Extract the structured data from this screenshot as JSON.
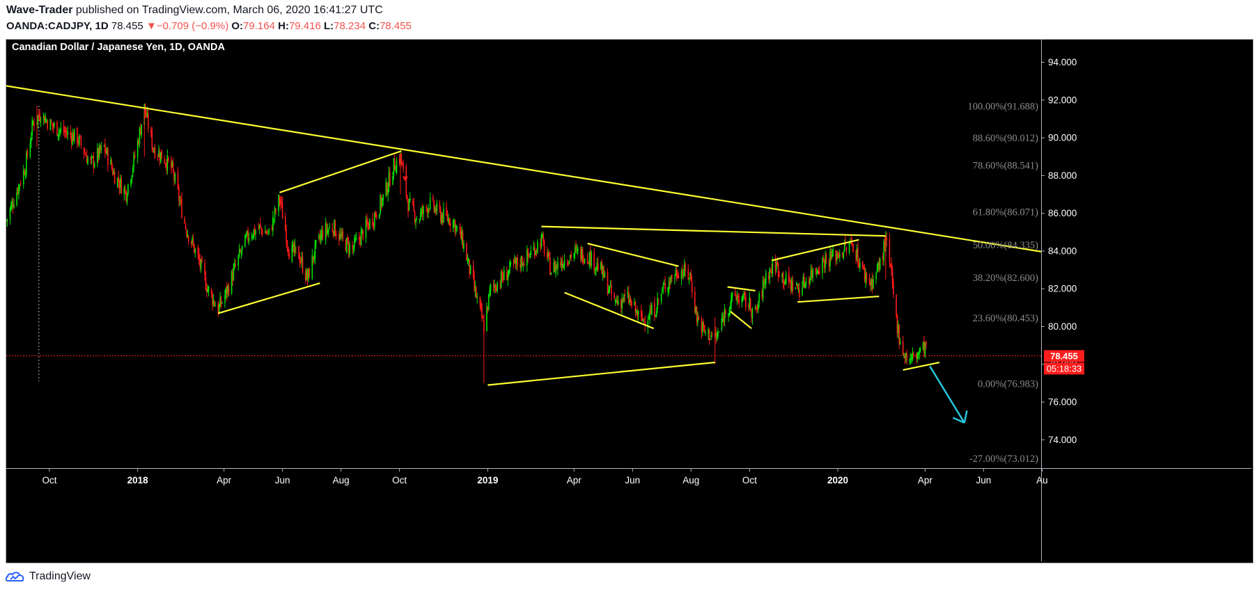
{
  "header": {
    "author": "Wave-Trader",
    "published_text": " published on TradingView.com, March 06, 2020 16:41:27 UTC",
    "symbol": "OANDA:CADJPY, 1D",
    "last": "78.455",
    "change_arrow": "▼",
    "change": "−0.709 (−0.9%)",
    "o_label": "O:",
    "o_value": "79.164",
    "h_label": "H:",
    "h_value": "79.416",
    "l_label": "L:",
    "l_value": "78.234",
    "c_label": "C:",
    "c_value": "78.455"
  },
  "footer": {
    "brand": "TradingView"
  },
  "chart_data": {
    "type": "candlestick",
    "title": "Canadian Dollar / Japanese Yen, 1D, OANDA",
    "ylim": [
      72.5,
      95.2
    ],
    "y_ticks": [
      74,
      76,
      78,
      80,
      82,
      84,
      86,
      88,
      90,
      92,
      94
    ],
    "y_tick_labels": [
      "74.000",
      "76.000",
      "78.000",
      "80.000",
      "82.000",
      "84.000",
      "86.000",
      "88.000",
      "90.000",
      "92.000",
      "94.000"
    ],
    "xlim": [
      "2017-08-17",
      "2020-07-31"
    ],
    "x_ticks": [
      {
        "date": "2017-10-01",
        "label": "Oct",
        "bold": false
      },
      {
        "date": "2018-01-01",
        "label": "2018",
        "bold": true
      },
      {
        "date": "2018-04-01",
        "label": "Apr",
        "bold": false
      },
      {
        "date": "2018-06-01",
        "label": "Jun",
        "bold": false
      },
      {
        "date": "2018-08-01",
        "label": "Aug",
        "bold": false
      },
      {
        "date": "2018-10-01",
        "label": "Oct",
        "bold": false
      },
      {
        "date": "2019-01-01",
        "label": "2019",
        "bold": true
      },
      {
        "date": "2019-04-01",
        "label": "Apr",
        "bold": false
      },
      {
        "date": "2019-06-01",
        "label": "Jun",
        "bold": false
      },
      {
        "date": "2019-08-01",
        "label": "Aug",
        "bold": false
      },
      {
        "date": "2019-10-01",
        "label": "Oct",
        "bold": false
      },
      {
        "date": "2020-01-01",
        "label": "2020",
        "bold": true
      },
      {
        "date": "2020-04-01",
        "label": "Apr",
        "bold": false
      },
      {
        "date": "2020-06-01",
        "label": "Jun",
        "bold": false
      },
      {
        "date": "2020-08-01",
        "label": "Au",
        "bold": false
      }
    ],
    "price_path": [
      [
        "2017-08-17",
        85.6
      ],
      [
        "2017-08-28",
        87.2
      ],
      [
        "2017-09-06",
        88.5
      ],
      [
        "2017-09-14",
        90.8
      ],
      [
        "2017-09-22",
        91.3
      ],
      [
        "2017-10-02",
        90.7
      ],
      [
        "2017-10-16",
        90.3
      ],
      [
        "2017-10-30",
        90.0
      ],
      [
        "2017-11-13",
        88.6
      ],
      [
        "2017-11-27",
        89.5
      ],
      [
        "2017-12-08",
        88.0
      ],
      [
        "2017-12-20",
        87.1
      ],
      [
        "2017-12-30",
        89.2
      ],
      [
        "2018-01-08",
        91.6
      ],
      [
        "2018-01-17",
        89.5
      ],
      [
        "2018-01-29",
        88.9
      ],
      [
        "2018-02-06",
        88.3
      ],
      [
        "2018-02-20",
        85.3
      ],
      [
        "2018-03-05",
        83.6
      ],
      [
        "2018-03-15",
        82.0
      ],
      [
        "2018-03-26",
        80.9
      ],
      [
        "2018-04-05",
        82.0
      ],
      [
        "2018-04-16",
        83.6
      ],
      [
        "2018-04-27",
        84.9
      ],
      [
        "2018-05-08",
        85.2
      ],
      [
        "2018-05-18",
        84.9
      ],
      [
        "2018-05-29",
        86.8
      ],
      [
        "2018-06-08",
        84.0
      ],
      [
        "2018-06-18",
        83.8
      ],
      [
        "2018-06-27",
        82.5
      ],
      [
        "2018-07-04",
        83.9
      ],
      [
        "2018-07-13",
        85.0
      ],
      [
        "2018-07-24",
        85.3
      ],
      [
        "2018-08-03",
        84.5
      ],
      [
        "2018-08-13",
        84.1
      ],
      [
        "2018-08-24",
        85.0
      ],
      [
        "2018-09-04",
        85.8
      ],
      [
        "2018-09-14",
        86.8
      ],
      [
        "2018-09-25",
        88.5
      ],
      [
        "2018-10-02",
        89.0
      ],
      [
        "2018-10-10",
        86.5
      ],
      [
        "2018-10-20",
        85.7
      ],
      [
        "2018-11-01",
        86.5
      ],
      [
        "2018-11-13",
        85.9
      ],
      [
        "2018-11-26",
        85.6
      ],
      [
        "2018-12-06",
        84.5
      ],
      [
        "2018-12-18",
        82.0
      ],
      [
        "2018-12-28",
        80.0
      ],
      [
        "2019-01-04",
        82.0
      ],
      [
        "2019-01-15",
        82.5
      ],
      [
        "2019-01-28",
        83.2
      ],
      [
        "2019-02-12",
        83.7
      ],
      [
        "2019-02-26",
        84.6
      ],
      [
        "2019-03-08",
        83.0
      ],
      [
        "2019-03-20",
        83.5
      ],
      [
        "2019-04-01",
        83.9
      ],
      [
        "2019-04-15",
        83.8
      ],
      [
        "2019-04-29",
        83.0
      ],
      [
        "2019-05-13",
        81.3
      ],
      [
        "2019-05-27",
        81.5
      ],
      [
        "2019-06-10",
        80.3
      ],
      [
        "2019-06-24",
        80.9
      ],
      [
        "2019-07-05",
        82.2
      ],
      [
        "2019-07-19",
        83.0
      ],
      [
        "2019-07-31",
        82.7
      ],
      [
        "2019-08-07",
        80.5
      ],
      [
        "2019-08-15",
        79.7
      ],
      [
        "2019-08-28",
        79.4
      ],
      [
        "2019-09-06",
        80.9
      ],
      [
        "2019-09-16",
        81.6
      ],
      [
        "2019-09-30",
        81.2
      ],
      [
        "2019-10-07",
        80.6
      ],
      [
        "2019-10-18",
        82.7
      ],
      [
        "2019-10-28",
        83.3
      ],
      [
        "2019-11-08",
        82.4
      ],
      [
        "2019-11-22",
        82.0
      ],
      [
        "2019-12-04",
        82.8
      ],
      [
        "2019-12-18",
        83.5
      ],
      [
        "2019-12-30",
        83.8
      ],
      [
        "2020-01-08",
        84.1
      ],
      [
        "2020-01-17",
        84.4
      ],
      [
        "2020-01-27",
        82.9
      ],
      [
        "2020-02-05",
        82.3
      ],
      [
        "2020-02-13",
        83.2
      ],
      [
        "2020-02-20",
        84.5
      ],
      [
        "2020-02-25",
        83.0
      ],
      [
        "2020-03-02",
        80.3
      ],
      [
        "2020-03-09",
        78.6
      ],
      [
        "2020-03-16",
        78.2
      ],
      [
        "2020-03-25",
        78.6
      ],
      [
        "2020-04-03",
        79.0
      ]
    ],
    "wicks": [
      {
        "date": "2017-09-18",
        "high": 91.7,
        "low": 89.5
      },
      {
        "date": "2018-01-08",
        "high": 91.6,
        "low": 89.0
      },
      {
        "date": "2018-10-02",
        "high": 89.2,
        "low": 87.0
      },
      {
        "date": "2018-12-28",
        "high": 80.5,
        "low": 77.0
      },
      {
        "date": "2019-08-26",
        "high": 80.5,
        "low": 78.0
      },
      {
        "date": "2020-02-20",
        "high": 84.8,
        "low": 82.5
      }
    ],
    "trendlines": [
      {
        "from": [
          "2017-08-17",
          92.75
        ],
        "to": [
          "2020-07-31",
          83.97
        ],
        "note": "long-term descending resistance"
      },
      {
        "from": [
          "2018-03-26",
          80.7
        ],
        "to": [
          "2018-07-10",
          82.3
        ]
      },
      {
        "from": [
          "2018-05-29",
          87.1
        ],
        "to": [
          "2018-10-03",
          89.3
        ]
      },
      {
        "from": [
          "2019-01-01",
          76.9
        ],
        "to": [
          "2019-08-26",
          78.1
        ]
      },
      {
        "from": [
          "2019-02-26",
          85.3
        ],
        "to": [
          "2020-02-20",
          84.8
        ]
      },
      {
        "from": [
          "2019-04-15",
          84.4
        ],
        "to": [
          "2019-07-19",
          83.2
        ]
      },
      {
        "from": [
          "2019-03-22",
          81.8
        ],
        "to": [
          "2019-06-23",
          79.9
        ]
      },
      {
        "from": [
          "2019-09-08",
          82.1
        ],
        "to": [
          "2019-10-07",
          81.9
        ]
      },
      {
        "from": [
          "2019-09-11",
          80.8
        ],
        "to": [
          "2019-10-03",
          79.9
        ]
      },
      {
        "from": [
          "2019-10-24",
          83.5
        ],
        "to": [
          "2020-01-23",
          84.6
        ]
      },
      {
        "from": [
          "2019-11-20",
          81.3
        ],
        "to": [
          "2020-02-13",
          81.6
        ]
      },
      {
        "from": [
          "2020-03-09",
          77.7
        ],
        "to": [
          "2020-04-16",
          78.1
        ]
      }
    ],
    "fib_levels": [
      {
        "label": "100.00%(91.688)",
        "value": 91.688
      },
      {
        "label": "88.60%(90.012)",
        "value": 90.012
      },
      {
        "label": "78.60%(88.541)",
        "value": 88.541
      },
      {
        "label": "61.80%(86.071)",
        "value": 86.071
      },
      {
        "label": "50.00%(84.335)",
        "value": 84.335
      },
      {
        "label": "38.20%(82.600)",
        "value": 82.6
      },
      {
        "label": "23.60%(80.453)",
        "value": 80.453
      },
      {
        "label": "0.00%(76.983)",
        "value": 76.983
      },
      {
        "label": "-27.00%(73.012)",
        "value": 73.012
      }
    ],
    "last_price": {
      "value": 78.455,
      "label": "78.455",
      "countdown": "05:18:33",
      "color": "#ff1e1e"
    },
    "projection_arrow": {
      "from": [
        "2020-04-06",
        77.9
      ],
      "to": [
        "2020-05-12",
        74.9
      ],
      "color": "#26c6da"
    },
    "vertical_marker": {
      "date": "2017-09-20",
      "from": 91.7,
      "to": 77.1
    },
    "sell_marker": {
      "date": "2018-10-07",
      "value": 87.8
    },
    "colors": {
      "up": "#00e600",
      "down": "#ff1a1a",
      "trendline": "#ffff33",
      "axis_text": "#ffffff",
      "fib_text": "#8c8c8c"
    }
  }
}
